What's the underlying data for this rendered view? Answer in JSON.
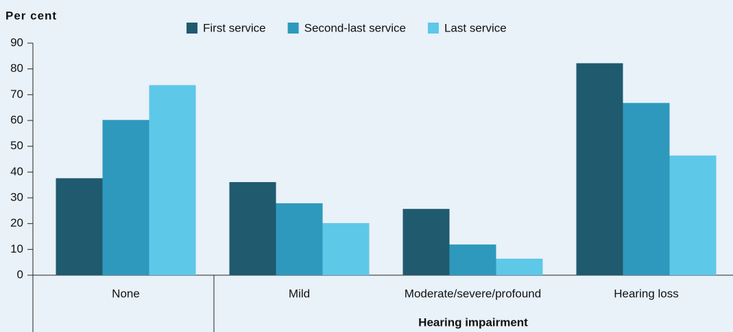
{
  "chart_data": {
    "type": "bar",
    "y_axis_label": "Per cent",
    "x_axis_label": "Hearing impairment",
    "categories": [
      "None",
      "Mild",
      "Moderate/severe/profound",
      "Hearing loss"
    ],
    "series": [
      {
        "name": "First service",
        "color": "#1f5a6e",
        "values": [
          37.6,
          36.1,
          25.7,
          82.2
        ]
      },
      {
        "name": "Second-last service",
        "color": "#2e99bd",
        "values": [
          60.2,
          27.9,
          11.9,
          66.8
        ]
      },
      {
        "name": "Last service",
        "color": "#5ec8e8",
        "values": [
          73.7,
          20.2,
          6.4,
          46.4
        ]
      }
    ],
    "ylim": [
      0,
      90
    ],
    "yticks": [
      0,
      10,
      20,
      30,
      40,
      50,
      60,
      70,
      80,
      90
    ],
    "grid": false,
    "legend": "top"
  }
}
